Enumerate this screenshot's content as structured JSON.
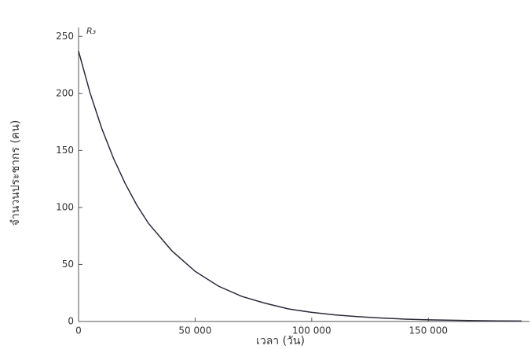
{
  "chart_data": {
    "type": "line",
    "y_axis_title": "R₃",
    "y_label": "จำนวนประชากร (คน)",
    "x_label": "เวลา (วัน)",
    "x": [
      0,
      5000,
      10000,
      15000,
      20000,
      25000,
      30000,
      40000,
      50000,
      60000,
      70000,
      80000,
      90000,
      100000,
      110000,
      120000,
      130000,
      140000,
      150000,
      160000,
      170000,
      180000,
      190000
    ],
    "series": [
      {
        "color": "#2b2b3a",
        "values": [
          237,
          200,
          169,
          143,
          121,
          102,
          86,
          62,
          44,
          31,
          22,
          16,
          11,
          8,
          5.8,
          4.2,
          3.0,
          2.1,
          1.5,
          1.1,
          0.8,
          0.55,
          0.4
        ]
      }
    ],
    "xlim": [
      0,
      190000
    ],
    "ylim": [
      0,
      255
    ],
    "xticks": [
      0,
      {
        "value": 50000,
        "label": "50 000"
      },
      {
        "value": 100000,
        "label": "100 000"
      },
      {
        "value": 150000,
        "label": "150 000"
      }
    ],
    "yticks": [
      0,
      50,
      100,
      150,
      200,
      250
    ]
  }
}
